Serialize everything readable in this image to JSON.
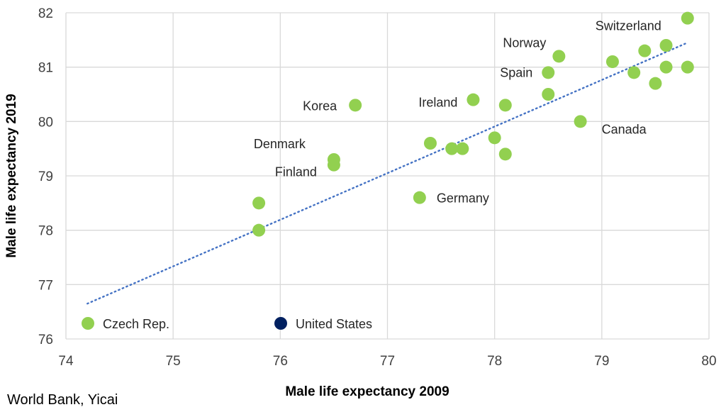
{
  "chart_data": {
    "type": "scatter",
    "xlabel": "Male life expectancy 2009",
    "ylabel": "Male life expectancy 2019",
    "xlim": [
      74,
      80
    ],
    "ylim": [
      76,
      82
    ],
    "xticks": [
      "74",
      "75",
      "76",
      "77",
      "78",
      "79",
      "80"
    ],
    "yticks": [
      "76",
      "77",
      "78",
      "79",
      "80",
      "81",
      "82"
    ],
    "grid": true,
    "trendline": {
      "style": "dotted",
      "color": "#4472C4",
      "x": [
        74.2,
        79.8
      ],
      "y": [
        76.65,
        81.45
      ]
    },
    "legend_position": "bottom-left",
    "series": [
      {
        "name": "Czech Rep.",
        "color": "#92D050",
        "points": [
          {
            "x": 79.8,
            "y": 81.9,
            "label": "Switzerland"
          },
          {
            "x": 79.6,
            "y": 81.4,
            "label": ""
          },
          {
            "x": 79.4,
            "y": 81.3,
            "label": ""
          },
          {
            "x": 79.1,
            "y": 81.1,
            "label": ""
          },
          {
            "x": 79.6,
            "y": 81.0,
            "label": ""
          },
          {
            "x": 79.8,
            "y": 81.0,
            "label": ""
          },
          {
            "x": 79.3,
            "y": 80.9,
            "label": ""
          },
          {
            "x": 79.5,
            "y": 80.7,
            "label": ""
          },
          {
            "x": 78.6,
            "y": 81.2,
            "label": "Norway"
          },
          {
            "x": 78.5,
            "y": 80.9,
            "label": "Spain"
          },
          {
            "x": 78.5,
            "y": 80.5,
            "label": ""
          },
          {
            "x": 78.8,
            "y": 80.0,
            "label": "Canada"
          },
          {
            "x": 77.8,
            "y": 80.4,
            "label": "Ireland"
          },
          {
            "x": 78.1,
            "y": 80.3,
            "label": ""
          },
          {
            "x": 78.0,
            "y": 79.7,
            "label": ""
          },
          {
            "x": 78.1,
            "y": 79.4,
            "label": ""
          },
          {
            "x": 77.4,
            "y": 79.6,
            "label": ""
          },
          {
            "x": 77.6,
            "y": 79.5,
            "label": ""
          },
          {
            "x": 77.7,
            "y": 79.5,
            "label": ""
          },
          {
            "x": 77.3,
            "y": 78.6,
            "label": "Germany"
          },
          {
            "x": 76.7,
            "y": 80.3,
            "label": "Korea"
          },
          {
            "x": 76.5,
            "y": 79.3,
            "label": "Denmark"
          },
          {
            "x": 76.5,
            "y": 79.2,
            "label": "Finland"
          },
          {
            "x": 75.8,
            "y": 78.5,
            "label": ""
          },
          {
            "x": 75.8,
            "y": 78.0,
            "label": ""
          }
        ]
      },
      {
        "name": "United States",
        "color": "#002060",
        "points": []
      }
    ]
  },
  "source": "World Bank, Yicai"
}
